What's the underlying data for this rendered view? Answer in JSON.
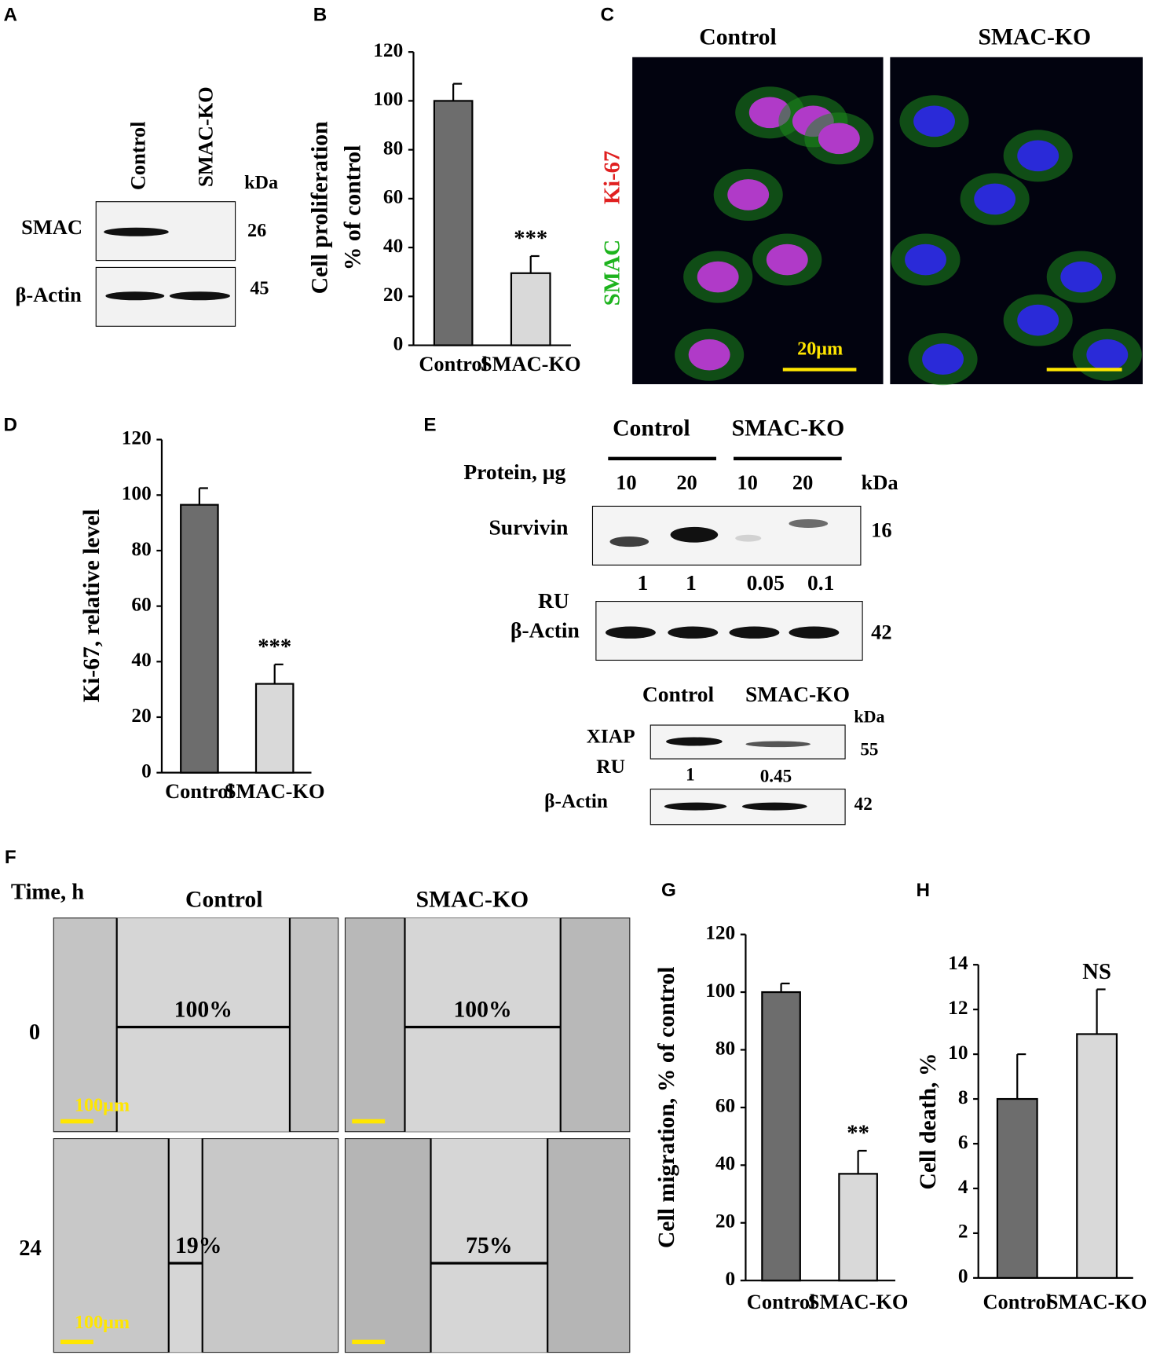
{
  "panels": {
    "A": {
      "letter": "A",
      "lanes": [
        "Control",
        "SMAC-KO"
      ],
      "kda": "kDa",
      "rows": [
        {
          "label": "SMAC",
          "kda": "26"
        },
        {
          "label": "β-Actin",
          "kda": "45"
        }
      ]
    },
    "B": {
      "letter": "B"
    },
    "C": {
      "letter": "C",
      "titles": [
        "Control",
        "SMAC-KO"
      ],
      "stain": [
        "SMAC",
        "Ki-67"
      ],
      "scale": "20μm"
    },
    "D": {
      "letter": "D"
    },
    "E": {
      "letter": "E",
      "groups": [
        "Control",
        "SMAC-KO"
      ],
      "protein": "Protein, µg",
      "lanes": [
        "10",
        "20",
        "10",
        "20"
      ],
      "kda": "kDa",
      "survivin": {
        "label": "Survivin",
        "kda": "16",
        "ru": [
          "1",
          "1",
          "0.05",
          "0.1"
        ]
      },
      "ru": "RU",
      "actin": {
        "label": "β-Actin",
        "kda": "42"
      },
      "lower": {
        "groups": [
          "Control",
          "SMAC-KO"
        ],
        "kda": "kDa",
        "xiap": {
          "label": "XIAP",
          "kda": "55"
        },
        "ru": "RU",
        "ru_values": [
          "1",
          "0.45"
        ],
        "actin": {
          "label": "β-Actin",
          "kda": "42"
        }
      }
    },
    "F": {
      "letter": "F",
      "time": "Time, h",
      "titles": [
        "Control",
        "SMAC-KO"
      ],
      "rows": [
        "0",
        "24"
      ],
      "percents": [
        "100%",
        "100%",
        "19%",
        "75%"
      ],
      "scale": [
        "100μm",
        "100μm"
      ]
    },
    "G": {
      "letter": "G"
    },
    "H": {
      "letter": "H"
    }
  },
  "chart_data": [
    {
      "type": "bar",
      "ylabel": [
        "Cell proliferation",
        "% of control"
      ],
      "categories": [
        "Control",
        "SMAC-KO"
      ],
      "values": [
        100,
        29.5
      ],
      "errors": [
        7,
        7
      ],
      "colors": [
        "#6d6d6d",
        "#d9d9d9"
      ],
      "annotations": [
        "***"
      ],
      "ylim": [
        0,
        120
      ],
      "yticks": [
        0,
        20,
        40,
        60,
        80,
        100,
        120
      ]
    },
    {
      "type": "bar",
      "ylabel": [
        "Ki-67, relative level"
      ],
      "categories": [
        "Control",
        "SMAC-KO"
      ],
      "values": [
        96.5,
        32
      ],
      "errors": [
        6,
        7
      ],
      "colors": [
        "#6d6d6d",
        "#d9d9d9"
      ],
      "annotations": [
        "***"
      ],
      "ylim": [
        0,
        120
      ],
      "yticks": [
        0,
        20,
        40,
        60,
        80,
        100,
        120
      ]
    },
    {
      "type": "bar",
      "ylabel": [
        "Cell migration, % of control"
      ],
      "categories": [
        "Control",
        "SMAC-KO"
      ],
      "values": [
        100,
        37
      ],
      "errors": [
        3,
        8
      ],
      "colors": [
        "#6d6d6d",
        "#d9d9d9"
      ],
      "annotations": [
        "**"
      ],
      "ylim": [
        0,
        120
      ],
      "yticks": [
        0,
        20,
        40,
        60,
        80,
        100,
        120
      ]
    },
    {
      "type": "bar",
      "ylabel": [
        "Cell death, %"
      ],
      "categories": [
        "Control",
        "SMAC-KO"
      ],
      "values": [
        8,
        10.9
      ],
      "errors": [
        2,
        2
      ],
      "colors": [
        "#6d6d6d",
        "#d9d9d9"
      ],
      "annotations": [
        "NS"
      ],
      "ylim": [
        0,
        14
      ],
      "yticks": [
        0,
        2,
        4,
        6,
        8,
        10,
        12,
        14
      ]
    }
  ]
}
